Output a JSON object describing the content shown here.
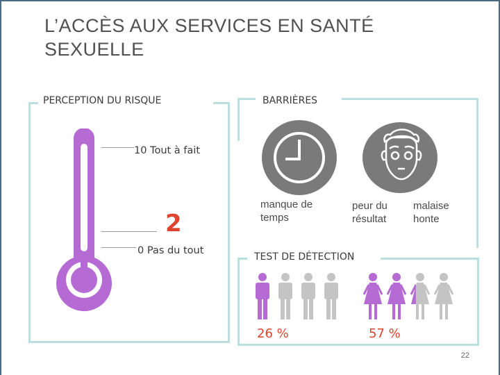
{
  "title": "L’ACCÈS AUX SERVICES EN SANTÉ SEXUELLE",
  "perception": {
    "heading": "PERCEPTION DU RISQUE",
    "top_label": "10 Tout à fait",
    "bottom_label": "0 Pas du tout",
    "value": "2",
    "level": 0.2
  },
  "barriers": {
    "heading": "BARRIÈRES",
    "items": [
      {
        "label": "manque de temps",
        "icon": "clock-icon"
      },
      {
        "label": "peur du résultat",
        "icon": "worried-face-icon"
      },
      {
        "label": "malaise honte",
        "icon": "none"
      }
    ]
  },
  "testing": {
    "heading": "TEST DE DÉTECTION",
    "men": {
      "percent": "26 %",
      "fraction": 0.26
    },
    "women": {
      "percent": "57 %",
      "fraction": 0.57
    }
  },
  "colors": {
    "accent_purple": "#b56ad4",
    "figure_gray": "#c4c4c4",
    "value_red": "#e0442f",
    "panel_border": "#b9e0df",
    "icon_gray": "#7a7a7a"
  },
  "page_number": "22"
}
